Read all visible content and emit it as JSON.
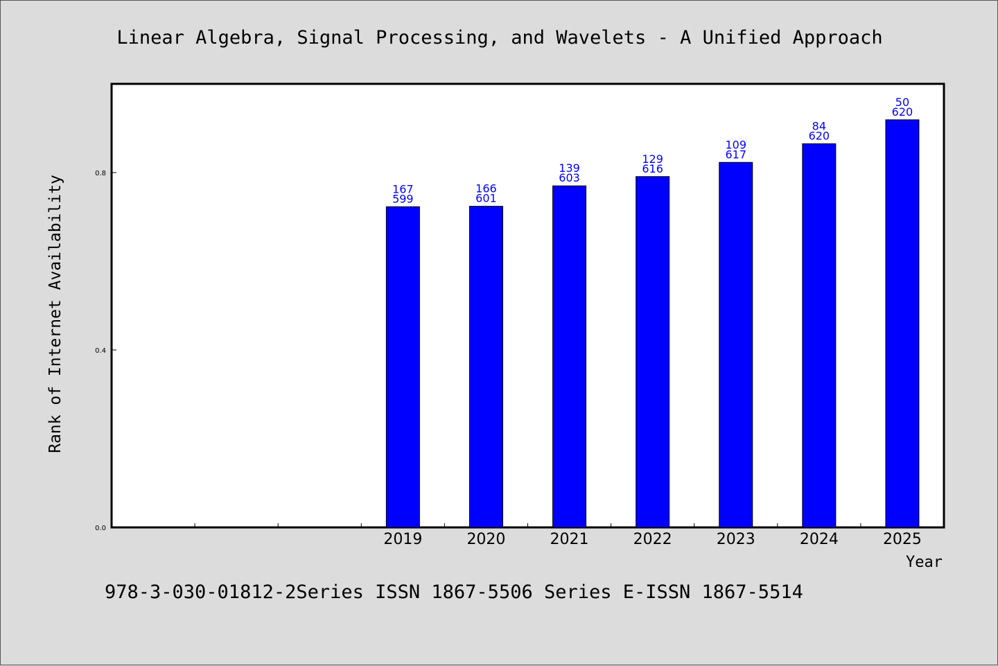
{
  "title": "Linear Algebra, Signal Processing, and Wavelets - A Unified Approach",
  "footer": "978-3-030-01812-2Series ISSN 1867-5506 Series E-ISSN 1867-5514",
  "colors": {
    "bar": "#0000ff",
    "label": "#0000ff",
    "background": "#dcdcdc",
    "plot": "#ffffff"
  },
  "chart_data": {
    "type": "bar",
    "title": "Linear Algebra, Signal Processing, and Wavelets - A Unified Approach",
    "xlabel": "Year",
    "ylabel": "Rank of Internet Availability",
    "ylim": [
      0,
      1.0
    ],
    "yticks": [
      {
        "value": 0.0,
        "label": "0.0"
      },
      {
        "value": 0.4,
        "label": "0.4"
      },
      {
        "value": 0.8,
        "label": "0.8"
      }
    ],
    "slots": 10,
    "first_bar_slot": 3,
    "categories": [
      "2019",
      "2020",
      "2021",
      "2022",
      "2023",
      "2024",
      "2025"
    ],
    "values": [
      0.723,
      0.724,
      0.77,
      0.791,
      0.823,
      0.865,
      0.919
    ],
    "labels_top": [
      "167",
      "166",
      "139",
      "129",
      "109",
      "84",
      "50"
    ],
    "labels_bottom": [
      "599",
      "601",
      "603",
      "616",
      "617",
      "620",
      "620"
    ],
    "grid": false,
    "legend": "none"
  }
}
